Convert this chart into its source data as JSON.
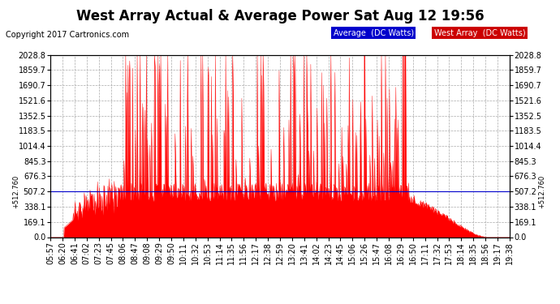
{
  "title": "West Array Actual & Average Power Sat Aug 12 19:56",
  "copyright": "Copyright 2017 Cartronics.com",
  "legend_average_label": "Average  (DC Watts)",
  "legend_west_label": "West Array  (DC Watts)",
  "legend_average_bg": "#0000cc",
  "legend_west_bg": "#cc0000",
  "y_ticks": [
    0.0,
    169.1,
    338.1,
    507.2,
    676.3,
    845.3,
    1014.4,
    1183.5,
    1352.5,
    1521.6,
    1690.7,
    1859.7,
    2028.8
  ],
  "ymin": 0.0,
  "ymax": 2028.8,
  "hline_value": 507.2,
  "hline_label": "+512.760",
  "x_labels": [
    "05:57",
    "06:20",
    "06:41",
    "07:02",
    "07:23",
    "07:45",
    "08:06",
    "08:47",
    "09:08",
    "09:29",
    "09:50",
    "10:11",
    "10:32",
    "10:53",
    "11:14",
    "11:35",
    "11:56",
    "12:17",
    "12:38",
    "12:59",
    "13:20",
    "13:41",
    "14:02",
    "14:23",
    "14:45",
    "15:06",
    "15:26",
    "15:47",
    "16:08",
    "16:29",
    "16:50",
    "17:11",
    "17:32",
    "17:53",
    "18:14",
    "18:35",
    "18:56",
    "19:17",
    "19:38"
  ],
  "bg_color": "#ffffff",
  "plot_bg_color": "#ffffff",
  "grid_color": "#aaaaaa",
  "fill_color": "#ff0000",
  "line_color": "#ff0000",
  "hline_color": "#0000cc",
  "title_fontsize": 12,
  "tick_fontsize": 7,
  "copyright_fontsize": 7
}
